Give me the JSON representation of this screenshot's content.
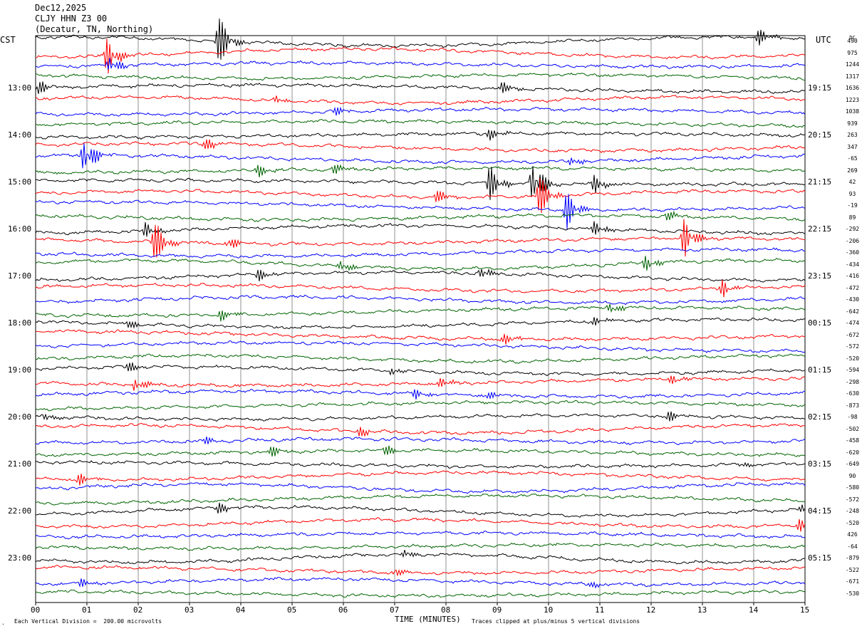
{
  "header": {
    "date": "Dec12,2025",
    "station": "CLJY HHN Z3 00",
    "location": "(Decatur, TN, Northing)"
  },
  "left_zone": "CST",
  "right_zone": "UTC",
  "dc_label": "DC",
  "footer": {
    "scale_note": "Each Vertical Division =  200.00 microvolts",
    "clip_note": "Traces clipped at plus/minus 5 vertical divisions",
    "corner_mark": "."
  },
  "chart_data": {
    "type": "line",
    "title": "",
    "xlabel": "TIME (MINUTES)",
    "ylabel": "",
    "xlim": [
      0,
      15
    ],
    "x_ticks": [
      "00",
      "01",
      "02",
      "03",
      "04",
      "05",
      "06",
      "07",
      "08",
      "09",
      "10",
      "11",
      "12",
      "13",
      "14",
      "15"
    ],
    "trace_count": 48,
    "trace_colors": [
      "#000000",
      "#ff0000",
      "#0000ff",
      "#006400"
    ],
    "left_time_labels": [
      "13:00",
      "14:00",
      "15:00",
      "16:00",
      "17:00",
      "18:00",
      "19:00",
      "20:00",
      "21:00",
      "22:00",
      "23:00"
    ],
    "right_time_labels": [
      "19:15",
      "20:15",
      "21:15",
      "22:15",
      "23:15",
      "00:15",
      "01:15",
      "02:15",
      "03:15",
      "04:15",
      "05:15"
    ],
    "dc_offsets": [
      "490",
      "975",
      "1244",
      "1317",
      "1636",
      "1223",
      "1038",
      "939",
      "263",
      "347",
      "-65",
      "269",
      "42",
      "93",
      "-19",
      "89",
      "-292",
      "-206",
      "-360",
      "-434",
      "-416",
      "-472",
      "-430",
      "-642",
      "-474",
      "-672",
      "-572",
      "-520",
      "-594",
      "-298",
      "-630",
      "-873",
      "-98",
      "-502",
      "-458",
      "-620",
      "-649",
      "90",
      "-580",
      "-572",
      "-248",
      "-520",
      "426",
      "-64",
      "-879",
      "-522",
      "-671",
      "-530"
    ],
    "events": [
      {
        "trace": 0,
        "minute": 3.55,
        "amp": 3.0
      },
      {
        "trace": 0,
        "minute": 14.1,
        "amp": 0.8
      },
      {
        "trace": 1,
        "minute": 1.4,
        "amp": 2.0
      },
      {
        "trace": 2,
        "minute": 1.45,
        "amp": 1.0
      },
      {
        "trace": 4,
        "minute": 0.05,
        "amp": 0.8
      },
      {
        "trace": 4,
        "minute": 9.1,
        "amp": 0.6
      },
      {
        "trace": 5,
        "minute": 4.7,
        "amp": 0.5
      },
      {
        "trace": 6,
        "minute": 5.85,
        "amp": 0.5
      },
      {
        "trace": 8,
        "minute": 8.85,
        "amp": 0.6
      },
      {
        "trace": 9,
        "minute": 3.3,
        "amp": 0.8
      },
      {
        "trace": 10,
        "minute": 0.95,
        "amp": 2.3
      },
      {
        "trace": 10,
        "minute": 10.45,
        "amp": 0.6
      },
      {
        "trace": 11,
        "minute": 4.35,
        "amp": 0.6
      },
      {
        "trace": 11,
        "minute": 5.8,
        "amp": 0.6
      },
      {
        "trace": 12,
        "minute": 8.85,
        "amp": 1.8
      },
      {
        "trace": 12,
        "minute": 9.7,
        "amp": 2.8
      },
      {
        "trace": 12,
        "minute": 10.9,
        "amp": 1.0
      },
      {
        "trace": 13,
        "minute": 9.8,
        "amp": 2.5
      },
      {
        "trace": 13,
        "minute": 7.8,
        "amp": 0.8
      },
      {
        "trace": 14,
        "minute": 10.35,
        "amp": 2.0
      },
      {
        "trace": 15,
        "minute": 12.3,
        "amp": 0.6
      },
      {
        "trace": 16,
        "minute": 2.15,
        "amp": 0.8
      },
      {
        "trace": 16,
        "minute": 10.9,
        "amp": 0.8
      },
      {
        "trace": 17,
        "minute": 2.3,
        "amp": 2.4
      },
      {
        "trace": 17,
        "minute": 12.65,
        "amp": 2.2
      },
      {
        "trace": 17,
        "minute": 3.75,
        "amp": 0.8
      },
      {
        "trace": 19,
        "minute": 5.95,
        "amp": 0.6
      },
      {
        "trace": 19,
        "minute": 11.9,
        "amp": 0.8
      },
      {
        "trace": 20,
        "minute": 4.35,
        "amp": 0.6
      },
      {
        "trace": 20,
        "minute": 8.7,
        "amp": 0.7
      },
      {
        "trace": 21,
        "minute": 13.4,
        "amp": 1.0
      },
      {
        "trace": 23,
        "minute": 3.6,
        "amp": 0.6
      },
      {
        "trace": 23,
        "minute": 11.2,
        "amp": 0.6
      },
      {
        "trace": 24,
        "minute": 1.75,
        "amp": 0.6
      },
      {
        "trace": 24,
        "minute": 10.9,
        "amp": 0.5
      },
      {
        "trace": 25,
        "minute": 9.15,
        "amp": 0.6
      },
      {
        "trace": 28,
        "minute": 1.8,
        "amp": 0.6
      },
      {
        "trace": 28,
        "minute": 6.95,
        "amp": 0.5
      },
      {
        "trace": 29,
        "minute": 1.95,
        "amp": 0.8
      },
      {
        "trace": 29,
        "minute": 7.9,
        "amp": 0.5
      },
      {
        "trace": 29,
        "minute": 12.4,
        "amp": 0.5
      },
      {
        "trace": 30,
        "minute": 7.4,
        "amp": 0.6
      },
      {
        "trace": 30,
        "minute": 8.75,
        "amp": 0.6
      },
      {
        "trace": 32,
        "minute": 0.2,
        "amp": 0.5
      },
      {
        "trace": 32,
        "minute": 12.35,
        "amp": 0.6
      },
      {
        "trace": 33,
        "minute": 6.3,
        "amp": 0.6
      },
      {
        "trace": 34,
        "minute": 3.3,
        "amp": 0.5
      },
      {
        "trace": 35,
        "minute": 4.6,
        "amp": 0.6
      },
      {
        "trace": 35,
        "minute": 6.8,
        "amp": 0.6
      },
      {
        "trace": 36,
        "minute": 13.75,
        "amp": 0.5
      },
      {
        "trace": 37,
        "minute": 0.85,
        "amp": 0.6
      },
      {
        "trace": 40,
        "minute": 3.55,
        "amp": 0.7
      },
      {
        "trace": 40,
        "minute": 14.95,
        "amp": 0.6
      },
      {
        "trace": 41,
        "minute": 14.9,
        "amp": 0.7
      },
      {
        "trace": 44,
        "minute": 7.2,
        "amp": 0.5
      },
      {
        "trace": 45,
        "minute": 7.0,
        "amp": 0.6
      },
      {
        "trace": 46,
        "minute": 0.9,
        "amp": 0.5
      },
      {
        "trace": 46,
        "minute": 10.75,
        "amp": 0.5
      }
    ]
  }
}
